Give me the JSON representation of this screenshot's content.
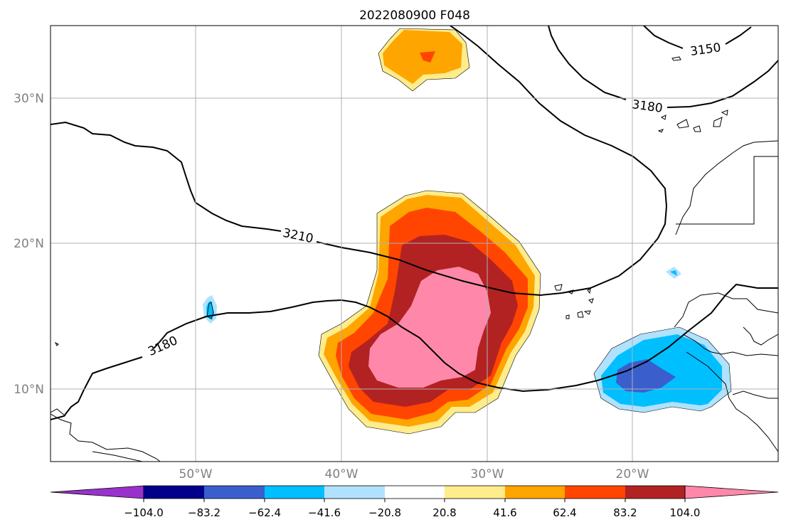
{
  "title": "2022080900 F048",
  "map": {
    "lat_labels": [
      "30°N",
      "20°N",
      "10°N"
    ],
    "lon_labels": [
      "50°W",
      "40°W",
      "30°W",
      "20°W"
    ],
    "contour_labels": [
      "3150",
      "3180",
      "3210",
      "3180"
    ]
  },
  "colorbar": {
    "tick_labels": [
      "−104.0",
      "−83.2",
      "−62.4",
      "−41.6",
      "−20.8",
      "20.8",
      "41.6",
      "62.4",
      "83.2",
      "104.0"
    ],
    "colors": [
      "#9932cc",
      "#00008b",
      "#3a5fcd",
      "#00bfff",
      "#b0e2ff",
      "#ffffff",
      "#ffec8b",
      "#ffa500",
      "#ff4500",
      "#b22222",
      "#ff88aa"
    ]
  },
  "colors": {
    "grid": "#b0b0b0",
    "tick_text": "#808080",
    "contour": "#000000"
  }
}
